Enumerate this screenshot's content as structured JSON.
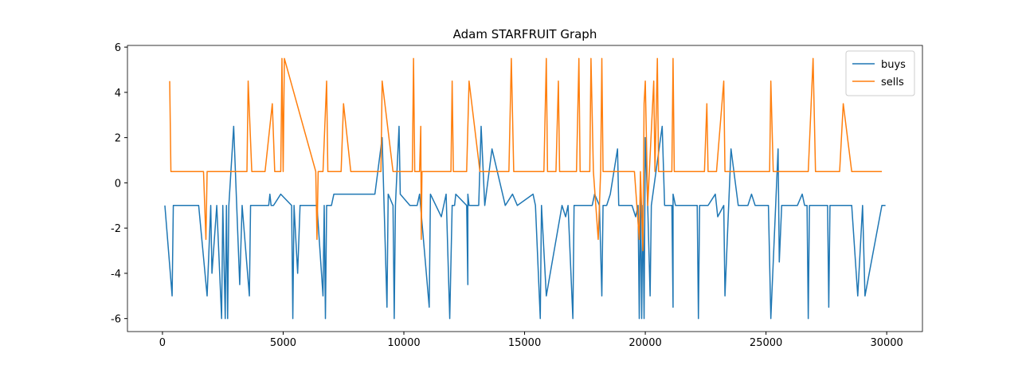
{
  "chart_data": {
    "type": "line",
    "title": "Adam STARFRUIT Graph",
    "xlim": [
      -1450,
      31480
    ],
    "ylim": [
      -6.575,
      6.075
    ],
    "xticks": [
      0,
      5000,
      10000,
      15000,
      20000,
      25000,
      30000
    ],
    "yticks": [
      -6,
      -4,
      -2,
      0,
      2,
      4,
      6
    ],
    "legend": "upper right",
    "grid": false,
    "series": [
      {
        "name": "buys",
        "color": "#1f77b4",
        "x": [
          100,
          400,
          450,
          1500,
          1850,
          2000,
          2050,
          2250,
          2450,
          2500,
          2600,
          2650,
          2700,
          2750,
          2950,
          3200,
          3300,
          3600,
          3650,
          4400,
          4450,
          4500,
          4600,
          4900,
          5350,
          5400,
          5450,
          5600,
          5700,
          6400,
          6650,
          6700,
          6750,
          6800,
          7000,
          7100,
          8800,
          9100,
          9300,
          9350,
          9550,
          9600,
          9650,
          9800,
          9850,
          10250,
          10550,
          10650,
          11050,
          11100,
          11550,
          11750,
          11900,
          12000,
          12100,
          12150,
          12600,
          12650,
          12650,
          12700,
          13100,
          13200,
          13350,
          13650,
          14200,
          14500,
          14700,
          15350,
          15450,
          15650,
          15700,
          15900,
          16550,
          16700,
          16800,
          17000,
          17050,
          17800,
          17900,
          18100,
          18200,
          18250,
          18400,
          18550,
          18850,
          18900,
          19450,
          19600,
          19700,
          19750,
          19800,
          19850,
          19900,
          19950,
          20000,
          20100,
          20200,
          20250,
          20700,
          20800,
          21100,
          21150,
          21150,
          21250,
          22150,
          22200,
          22250,
          22600,
          22900,
          23000,
          23250,
          23300,
          23550,
          23850,
          24250,
          24400,
          24550,
          25100,
          25200,
          25500,
          25550,
          25650,
          26300,
          26500,
          26600,
          26700,
          26750,
          26800,
          27550,
          27600,
          27650,
          28550,
          28800,
          29000,
          29100,
          29800,
          29950
        ],
        "values": [
          -1,
          -5,
          -1,
          -1,
          -5,
          -1,
          -4,
          -1,
          -6,
          -1,
          -6,
          -1,
          -6,
          -1,
          2.5,
          -4.5,
          -1,
          -5,
          -1,
          -1,
          -0.5,
          -1,
          -1,
          -0.5,
          -1,
          -6,
          -1,
          -4,
          -1,
          -1,
          -5,
          -1,
          -6,
          -1,
          -1,
          -0.5,
          -0.5,
          2,
          -5.5,
          -0.5,
          -1,
          -6,
          -1,
          2.5,
          -0.5,
          -1,
          -1,
          -0.5,
          -5.5,
          -0.5,
          -1.5,
          -0.5,
          -6,
          -1,
          -1,
          -0.5,
          -1,
          -4.5,
          -0.5,
          -1,
          -1,
          2.5,
          -1,
          1.5,
          -1,
          -0.5,
          -1,
          -0.5,
          -1,
          -6,
          -1,
          -5,
          -1,
          -1.5,
          -1,
          -6,
          -1,
          -1,
          -0.5,
          -1,
          -5,
          -1,
          -1,
          -0.5,
          1.5,
          -1,
          -1,
          -1.5,
          -1,
          -6,
          -0.5,
          -6,
          -1,
          -6,
          2,
          -1,
          -5,
          -1,
          2.5,
          -1,
          -1,
          -5.5,
          -0.5,
          -1,
          -1,
          -6,
          -1,
          -1,
          -0.5,
          -1.5,
          -1,
          -5,
          1.5,
          -1,
          -1,
          -0.5,
          -1,
          -1,
          -6,
          1.5,
          -3.5,
          -1,
          -1,
          -0.5,
          -1,
          -1,
          -6,
          -1,
          -1,
          -5.5,
          -1,
          -1,
          -5,
          -1,
          -5,
          -1,
          -1
        ]
      },
      {
        "name": "sells",
        "color": "#ff7f0e",
        "x": [
          300,
          350,
          1700,
          1800,
          1850,
          3500,
          3550,
          3700,
          4250,
          4550,
          4650,
          4900,
          4950,
          5000,
          5050,
          6350,
          6400,
          6450,
          6650,
          6800,
          6850,
          7400,
          7500,
          7800,
          9050,
          9100,
          9550,
          10350,
          10400,
          10450,
          10650,
          10700,
          10720,
          10750,
          11950,
          12000,
          12050,
          12600,
          12700,
          13150,
          14350,
          14450,
          14550,
          15800,
          15900,
          15950,
          16300,
          16400,
          16450,
          17150,
          17250,
          17300,
          17700,
          17750,
          17850,
          18050,
          18150,
          18200,
          18250,
          19550,
          19750,
          19800,
          19900,
          19950,
          20000,
          20100,
          20350,
          20400,
          20500,
          20550,
          21100,
          21150,
          21200,
          22450,
          22550,
          22600,
          22950,
          23250,
          23300,
          25150,
          25200,
          25300,
          26750,
          26950,
          27050,
          28050,
          28200,
          28550,
          29800
        ],
        "values": [
          4.5,
          0.5,
          0.5,
          -2.5,
          0.5,
          0.5,
          4.5,
          0.5,
          0.5,
          3.5,
          0.5,
          0.5,
          5.5,
          0.5,
          5.5,
          0.5,
          -2.5,
          0.5,
          0.5,
          4.5,
          0.5,
          0.5,
          3.5,
          0.5,
          0.5,
          4.5,
          0.5,
          0.5,
          5.5,
          0.5,
          0.5,
          2.5,
          -2.5,
          0.5,
          0.5,
          4.5,
          0.5,
          0.5,
          4.5,
          0.5,
          0.5,
          5.5,
          0.5,
          0.5,
          5.5,
          0.5,
          0.5,
          4.5,
          0.5,
          0.5,
          5.5,
          0.5,
          0.5,
          5.5,
          0.5,
          -2.5,
          0.5,
          5.5,
          0.5,
          0.5,
          -2.5,
          0.5,
          -3,
          3.5,
          4.5,
          -1,
          4.5,
          0.5,
          5.5,
          0.5,
          0.5,
          5.5,
          0.5,
          0.5,
          3.5,
          0.5,
          0.5,
          4.5,
          0.5,
          0.5,
          4.5,
          0.5,
          0.5,
          5.5,
          0.5,
          0.5,
          3.5,
          0.5,
          0.5
        ]
      }
    ]
  }
}
